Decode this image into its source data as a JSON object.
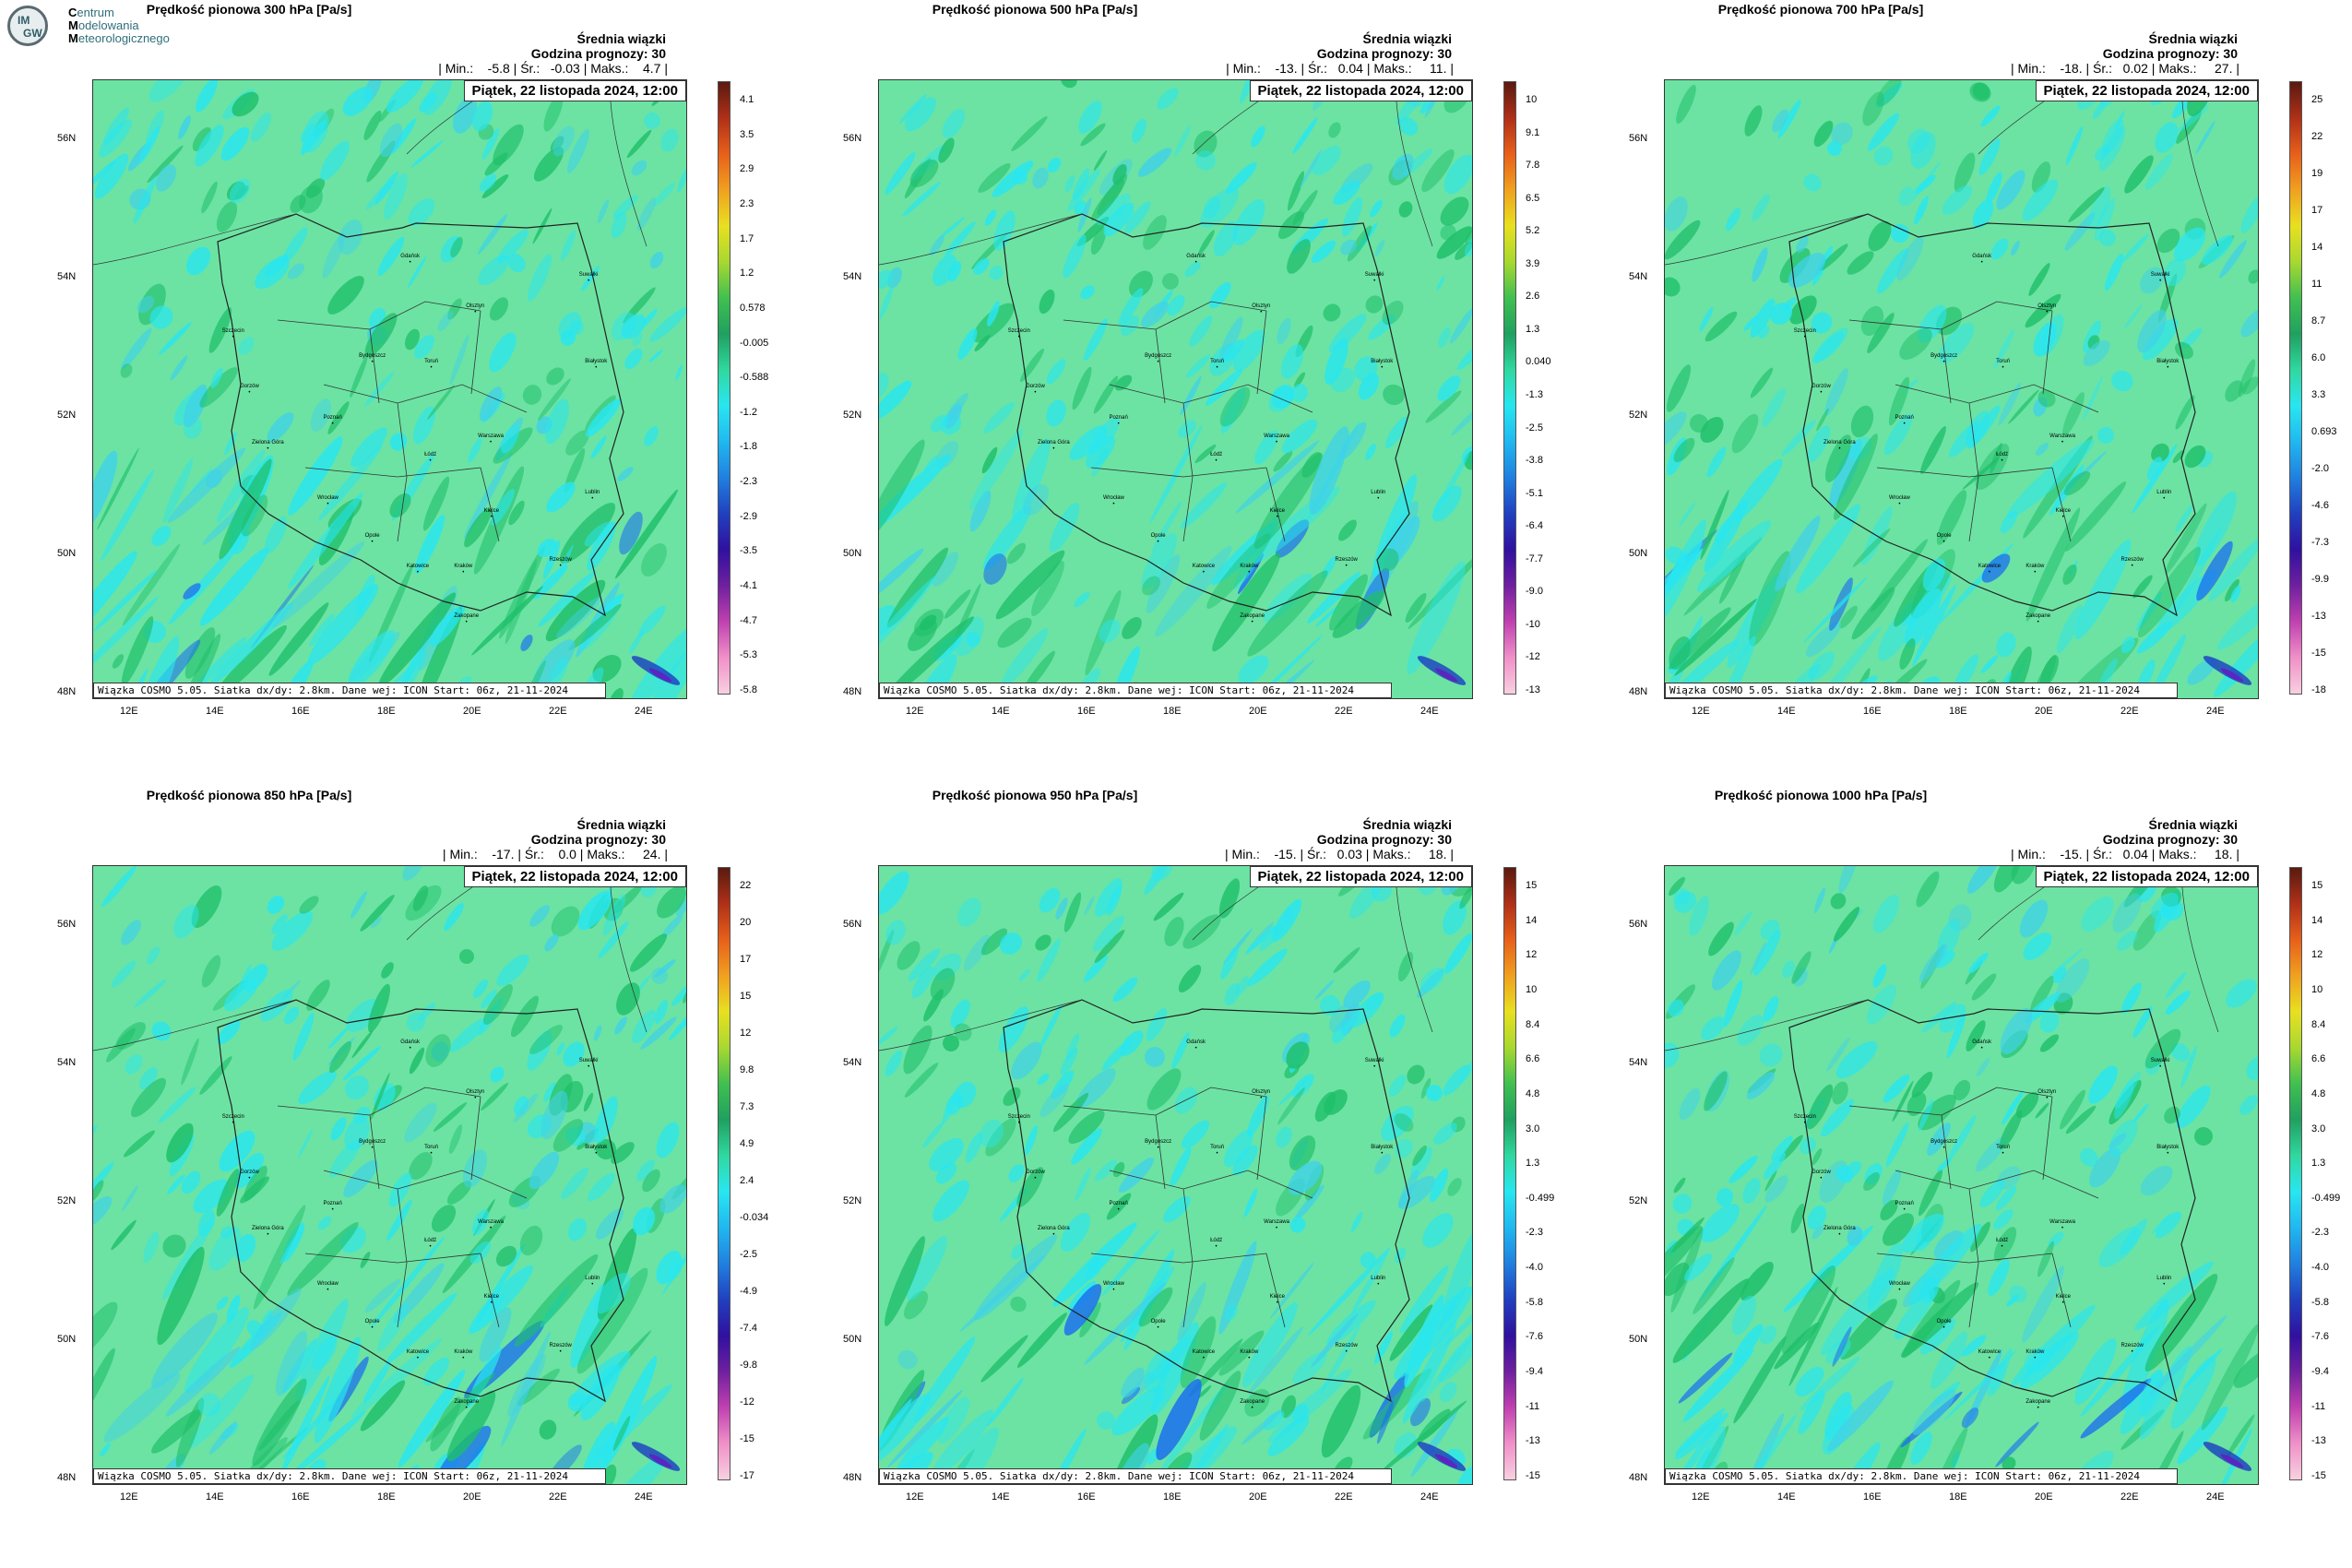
{
  "logo": {
    "initials_top": "IM",
    "initials_bottom": "GW",
    "line1_initial": "C",
    "line1_rest": "entrum",
    "line2_initial": "M",
    "line2_rest": "odelowania",
    "line3_initial": "M",
    "line3_rest": "eteorologicznego"
  },
  "common": {
    "header_line1": "Średnia wiązki",
    "header_line2": "Godzina prognozy: 30",
    "date_label": "Piątek, 22 listopada 2024, 12:00",
    "info_label": "Wiązka COSMO 5.05. Siatka dx/dy: 2.8km. Dane wej: ICON Start: 06z, 21-11-2024",
    "lat_labels": [
      "56N",
      "54N",
      "52N",
      "50N",
      "48N"
    ],
    "lon_labels": [
      "12E",
      "14E",
      "16E",
      "18E",
      "20E",
      "22E",
      "24E"
    ]
  },
  "panels": [
    {
      "title": "Prędkość pionowa 300 hPa [Pa/s]",
      "stats": "| Min.:    -5.8 | Śr.:   -0.03 | Maks.:    4.7 |",
      "colorbar": [
        "4.1",
        "3.5",
        "2.9",
        "2.3",
        "1.7",
        "1.2",
        "0.578",
        "-0.005",
        "-0.588",
        "-1.2",
        "-1.8",
        "-2.3",
        "-2.9",
        "-3.5",
        "-4.1",
        "-4.7",
        "-5.3",
        "-5.8"
      ]
    },
    {
      "title": "Prędkość pionowa 500 hPa [Pa/s]",
      "stats": "| Min.:    -13. | Śr.:   0.04 | Maks.:     11. |",
      "colorbar": [
        "10",
        "9.1",
        "7.8",
        "6.5",
        "5.2",
        "3.9",
        "2.6",
        "1.3",
        "0.040",
        "-1.3",
        "-2.5",
        "-3.8",
        "-5.1",
        "-6.4",
        "-7.7",
        "-9.0",
        "-10",
        "-12",
        "-13"
      ]
    },
    {
      "title": "Prędkość pionowa 700 hPa [Pa/s]",
      "stats": "| Min.:    -18. | Śr.:   0.02 | Maks.:     27. |",
      "colorbar": [
        "25",
        "22",
        "19",
        "17",
        "14",
        "11",
        "8.7",
        "6.0",
        "3.3",
        "0.693",
        "-2.0",
        "-4.6",
        "-7.3",
        "-9.9",
        "-13",
        "-15",
        "-18"
      ]
    },
    {
      "title": "Prędkość pionowa 850 hPa [Pa/s]",
      "stats": "| Min.:    -17. | Śr.:    0.0 | Maks.:     24. |",
      "colorbar": [
        "22",
        "20",
        "17",
        "15",
        "12",
        "9.8",
        "7.3",
        "4.9",
        "2.4",
        "-0.034",
        "-2.5",
        "-4.9",
        "-7.4",
        "-9.8",
        "-12",
        "-15",
        "-17"
      ]
    },
    {
      "title": "Prędkość pionowa 950 hPa [Pa/s]",
      "stats": "| Min.:    -15. | Śr.:   0.03 | Maks.:     18. |",
      "colorbar": [
        "15",
        "14",
        "12",
        "10",
        "8.4",
        "6.6",
        "4.8",
        "3.0",
        "1.3",
        "-0.499",
        "-2.3",
        "-4.0",
        "-5.8",
        "-7.6",
        "-9.4",
        "-11",
        "-13",
        "-15"
      ]
    },
    {
      "title": "Prędkość pionowa 1000 hPa [Pa/s]",
      "stats": "| Min.:    -15. | Śr.:   0.04 | Maks.:     18. |",
      "colorbar": [
        "15",
        "14",
        "12",
        "10",
        "8.4",
        "6.6",
        "4.8",
        "3.0",
        "1.3",
        "-0.499",
        "-2.3",
        "-4.0",
        "-5.8",
        "-7.6",
        "-9.4",
        "-11",
        "-13",
        "-15"
      ]
    }
  ],
  "cities": [
    "Gdańsk",
    "Suwałki",
    "Olsztyn",
    "Szczecin",
    "Bydgoszcz",
    "Toruń",
    "Białystok",
    "Gorzów",
    "Poznań",
    "Warszawa",
    "Zielona Góra",
    "Łódź",
    "Lublin",
    "Wrocław",
    "Opole",
    "Kielce",
    "Katowice",
    "Kraków",
    "Rzeszów",
    "Zakopane"
  ],
  "colors": {
    "background_field": "#6ce3a3",
    "cyan": "#28e6f0",
    "green": "#1fbf6a",
    "blue": "#1a6cf0",
    "purple": "#6020c0"
  }
}
